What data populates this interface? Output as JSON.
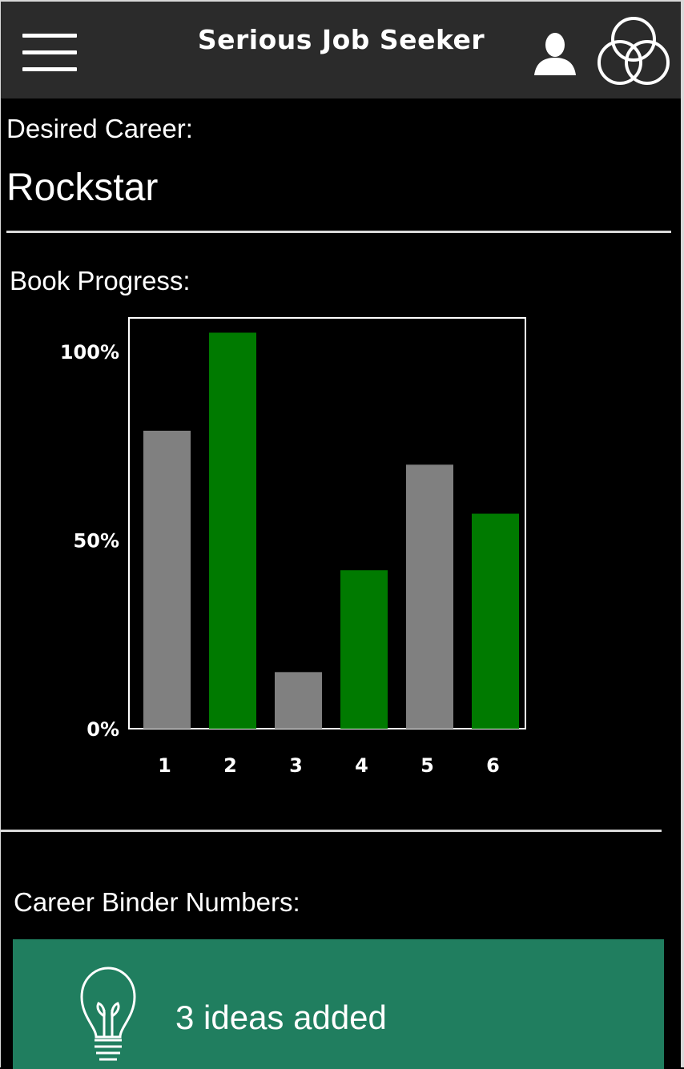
{
  "header": {
    "title": "Serious Job Seeker",
    "menu_icon": "hamburger-menu-icon",
    "user_icon": "user-icon",
    "logo_icon": "interlocking-circles-logo"
  },
  "career": {
    "label": "Desired Career:",
    "value": "Rockstar"
  },
  "progress": {
    "label": "Book Progress:"
  },
  "chart_data": {
    "type": "bar",
    "categories": [
      "1",
      "2",
      "3",
      "4",
      "5",
      "6"
    ],
    "values": [
      79,
      105,
      15,
      42,
      70,
      57
    ],
    "colors": [
      "#808080",
      "#007a00",
      "#808080",
      "#007a00",
      "#808080",
      "#007a00"
    ],
    "yticks": [
      "0%",
      "50%",
      "100%"
    ],
    "ytick_values": [
      0,
      50,
      100
    ],
    "ylim": [
      0,
      109
    ],
    "title": "",
    "xlabel": "",
    "ylabel": "",
    "grid": false
  },
  "binder": {
    "label": "Career Binder Numbers:",
    "ideas_text": "3 ideas added",
    "icon": "lightbulb-icon",
    "card_color": "#207e5f"
  }
}
